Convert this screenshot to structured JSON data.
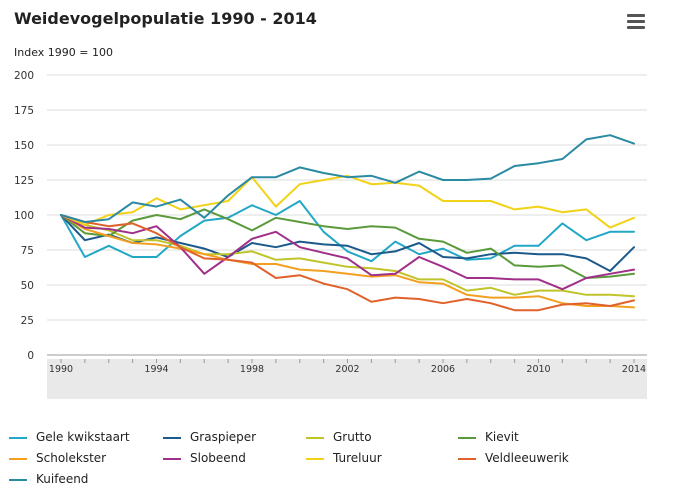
{
  "header": {
    "title": "Weidevogelpopulatie 1990 - 2014",
    "subtitle": "Index 1990 = 100",
    "menu_icon": "hamburger-menu-icon"
  },
  "chart_data": {
    "type": "line",
    "title": "Weidevogelpopulatie 1990 - 2014",
    "ylabel": "Index 1990 = 100",
    "xlabel": "",
    "ylim": [
      0,
      200
    ],
    "yticks": [
      0,
      25,
      50,
      75,
      100,
      125,
      150,
      175,
      200
    ],
    "xlim": [
      1990,
      2014
    ],
    "xticks": [
      1990,
      1994,
      1998,
      2002,
      2006,
      2010,
      2014
    ],
    "grid": "horizontal",
    "legend": "bottom",
    "x": [
      1990,
      1991,
      1992,
      1993,
      1994,
      1995,
      1996,
      1997,
      1998,
      1999,
      2000,
      2001,
      2002,
      2003,
      2004,
      2005,
      2006,
      2007,
      2008,
      2009,
      2010,
      2011,
      2012,
      2013,
      2014
    ],
    "series": [
      {
        "name": "Gele kwikstaart",
        "color": "#23a7c7",
        "values": [
          100,
          70,
          78,
          70,
          70,
          85,
          96,
          98,
          107,
          100,
          110,
          88,
          74,
          67,
          81,
          72,
          76,
          68,
          69,
          78,
          78,
          94,
          82,
          88,
          88
        ]
      },
      {
        "name": "Graspieper",
        "color": "#1d5a8c",
        "values": [
          100,
          82,
          86,
          80,
          84,
          80,
          76,
          70,
          80,
          77,
          81,
          79,
          78,
          72,
          74,
          80,
          70,
          69,
          72,
          73,
          72,
          72,
          69,
          60,
          77
        ]
      },
      {
        "name": "Grutto",
        "color": "#bfc42a",
        "values": [
          100,
          93,
          89,
          82,
          82,
          78,
          72,
          72,
          74,
          68,
          69,
          66,
          63,
          62,
          60,
          54,
          54,
          46,
          48,
          43,
          46,
          46,
          43,
          43,
          42
        ]
      },
      {
        "name": "Kievit",
        "color": "#5a9a3a",
        "values": [
          100,
          87,
          85,
          96,
          100,
          97,
          104,
          97,
          89,
          98,
          95,
          92,
          90,
          92,
          91,
          83,
          81,
          73,
          76,
          64,
          63,
          64,
          55,
          56,
          58
        ]
      },
      {
        "name": "Scholekster",
        "color": "#f3a020",
        "values": [
          100,
          90,
          85,
          80,
          79,
          76,
          72,
          68,
          65,
          65,
          61,
          60,
          58,
          56,
          57,
          52,
          51,
          43,
          41,
          41,
          42,
          37,
          35,
          35,
          34
        ]
      },
      {
        "name": "Slobeend",
        "color": "#a1308a",
        "values": [
          100,
          91,
          90,
          87,
          92,
          77,
          58,
          70,
          83,
          88,
          77,
          73,
          69,
          57,
          58,
          70,
          63,
          55,
          55,
          54,
          54,
          47,
          55,
          58,
          61
        ]
      },
      {
        "name": "Tureluur",
        "color": "#f2d216",
        "values": [
          100,
          93,
          100,
          102,
          112,
          104,
          107,
          110,
          127,
          106,
          122,
          125,
          128,
          122,
          123,
          121,
          110,
          110,
          110,
          104,
          106,
          102,
          104,
          91,
          98
        ]
      },
      {
        "name": "Veldleeuwerik",
        "color": "#e0622a",
        "values": [
          100,
          95,
          92,
          94,
          87,
          77,
          69,
          68,
          66,
          55,
          57,
          51,
          47,
          38,
          41,
          40,
          37,
          40,
          37,
          32,
          32,
          36,
          37,
          35,
          39
        ]
      },
      {
        "name": "Kuifeend",
        "color": "#2b8aa3",
        "values": [
          100,
          95,
          97,
          109,
          106,
          111,
          98,
          114,
          127,
          127,
          134,
          130,
          127,
          128,
          123,
          131,
          125,
          125,
          126,
          135,
          137,
          140,
          154,
          157,
          151
        ]
      }
    ]
  }
}
